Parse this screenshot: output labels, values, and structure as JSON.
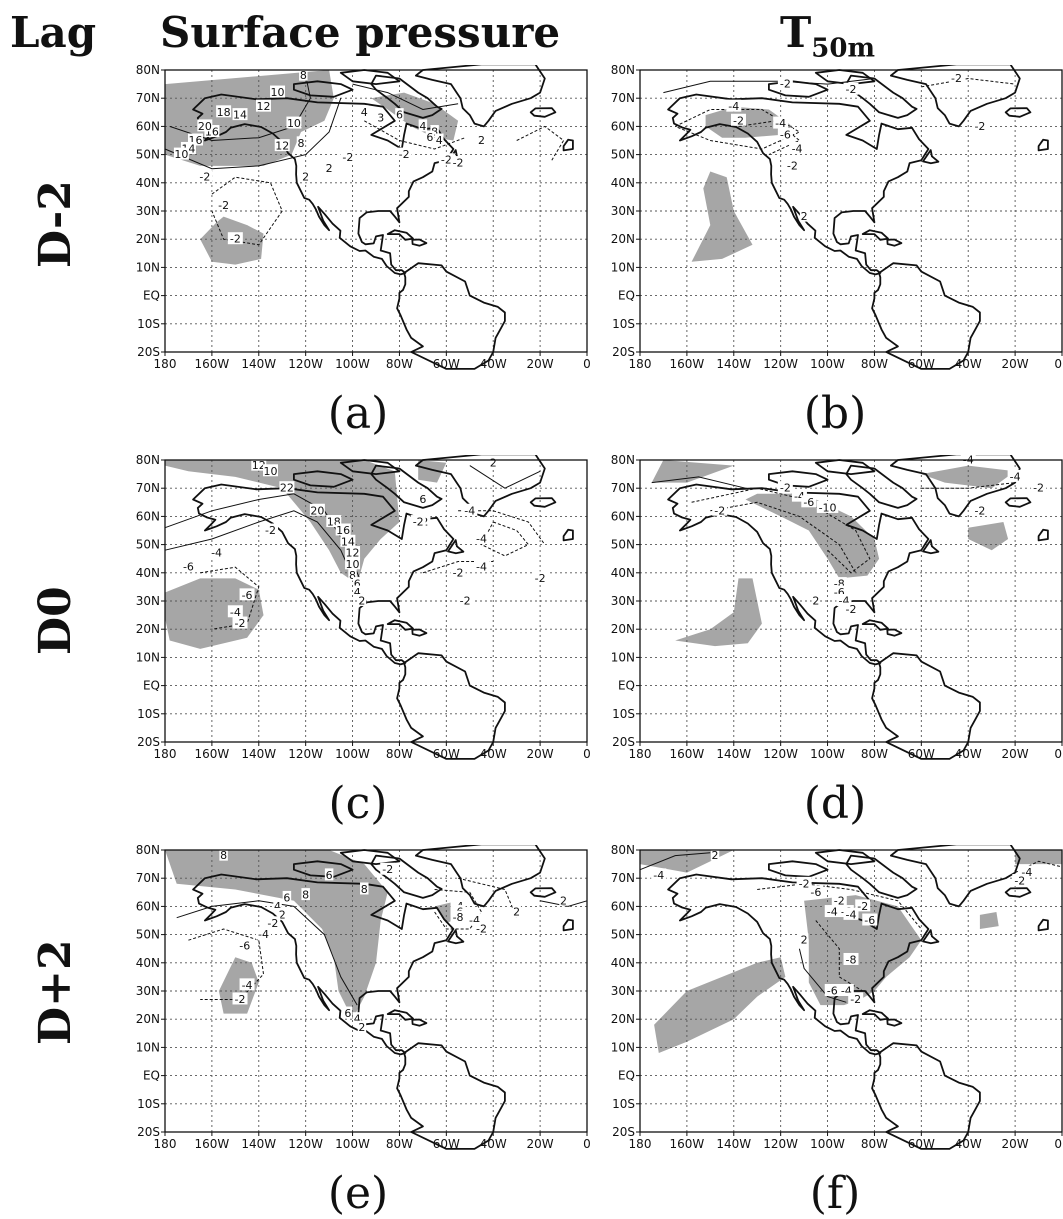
{
  "headers": {
    "lag": "Lag",
    "col1": "Surface pressure",
    "col2_main": "T",
    "col2_sub": "50m"
  },
  "rows": [
    "D-2",
    "D0",
    "D+2"
  ],
  "panels": [
    {
      "id": "a",
      "caption": "(a)",
      "labels": [
        "10",
        "8",
        "12",
        "14",
        "16",
        "18",
        "20",
        "16",
        "14",
        "10",
        "8",
        "12",
        "10",
        "4",
        "3",
        "6",
        "4",
        "8",
        "6",
        "4",
        "-2",
        "-2",
        "-2",
        "-2",
        "2",
        "2",
        "-2",
        "-2",
        "-2",
        "2"
      ]
    },
    {
      "id": "b",
      "caption": "(b)",
      "labels": [
        "-2",
        "-2",
        "-2",
        "-4",
        "-2",
        "-4",
        "-6",
        "-4",
        "-2",
        "2",
        "-2"
      ]
    },
    {
      "id": "c",
      "caption": "(c)",
      "labels": [
        "12",
        "10",
        "22",
        "20",
        "18",
        "16",
        "14",
        "12",
        "10",
        "8",
        "6",
        "4",
        "2",
        "-2",
        "-4",
        "-6",
        "-6",
        "-4",
        "-2",
        "6",
        "-2",
        "-4",
        "-4",
        "-4",
        "-2",
        "-2",
        "-2",
        "2",
        "-2"
      ]
    },
    {
      "id": "d",
      "caption": "(d)",
      "labels": [
        "-2",
        "-4",
        "-6",
        "-2",
        "-10",
        "-8",
        "-6",
        "-4",
        "-2",
        "-2",
        "-4",
        "-2",
        "2",
        "-4"
      ]
    },
    {
      "id": "e",
      "caption": "(e)",
      "labels": [
        "8",
        "6",
        "8",
        "8",
        "6",
        "4",
        "2",
        "-2",
        "-4",
        "-6",
        "-4",
        "-2",
        "6",
        "4",
        "2",
        "-4",
        "-6",
        "-8",
        "-4",
        "-2",
        "2",
        "-2",
        "2"
      ]
    },
    {
      "id": "f",
      "caption": "(f)",
      "labels": [
        "2",
        "-4",
        "-2",
        "-6",
        "-2",
        "-4",
        "-6",
        "-2",
        "-4",
        "-6",
        "-8",
        "-6",
        "-4",
        "-2",
        "2",
        "-4",
        "-2"
      ]
    }
  ],
  "axes": {
    "lat_ticks": [
      "80N",
      "70N",
      "60N",
      "50N",
      "40N",
      "30N",
      "20N",
      "10N",
      "EQ",
      "10S",
      "20S"
    ],
    "lon_ticks": [
      "180",
      "160W",
      "140W",
      "120W",
      "100W",
      "80W",
      "60W",
      "40W",
      "20W",
      "0"
    ]
  },
  "colors": {
    "shade": "#a6a6a6",
    "coast": "#111111",
    "grid": "#555555"
  }
}
